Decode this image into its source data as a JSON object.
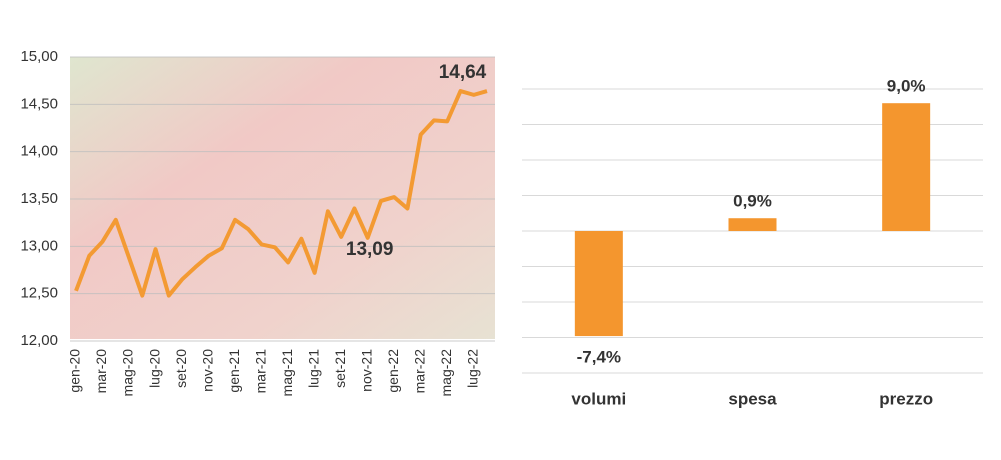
{
  "chart_data": [
    {
      "type": "line",
      "categories": [
        "gen-20",
        null,
        "mar-20",
        null,
        "mag-20",
        null,
        "lug-20",
        null,
        "set-20",
        null,
        "nov-20",
        null,
        "gen-21",
        null,
        "mar-21",
        null,
        "mag-21",
        null,
        "lug-21",
        null,
        "set-21",
        null,
        "nov-21",
        null,
        "gen-22",
        null,
        "mar-22",
        null,
        "mag-22",
        null,
        "lug-22",
        null
      ],
      "values": [
        12.53,
        12.9,
        13.05,
        13.28,
        12.88,
        12.48,
        12.97,
        12.48,
        12.65,
        12.78,
        12.9,
        12.98,
        13.28,
        13.18,
        13.02,
        12.99,
        12.83,
        13.08,
        12.72,
        13.37,
        13.1,
        13.4,
        13.09,
        13.48,
        13.52,
        13.4,
        14.18,
        14.33,
        14.32,
        14.64,
        14.6,
        14.64
      ],
      "value_labels": [
        null,
        null,
        null,
        null,
        null,
        null,
        null,
        null,
        null,
        null,
        null,
        null,
        null,
        null,
        null,
        null,
        null,
        null,
        null,
        null,
        null,
        null,
        "13,09",
        null,
        null,
        null,
        null,
        null,
        null,
        "14,64",
        null,
        null
      ],
      "color": "#f39a33",
      "ylim": [
        12,
        15
      ],
      "yticks": [
        {
          "value": 12,
          "label": "12,00"
        },
        {
          "value": 12.5,
          "label": "12,50"
        },
        {
          "value": 13,
          "label": "13,00"
        },
        {
          "value": 13.5,
          "label": "13,50"
        },
        {
          "value": 14,
          "label": "14,00"
        },
        {
          "value": 14.5,
          "label": "14,50"
        },
        {
          "value": 15,
          "label": "15,00"
        }
      ],
      "grid": true
    },
    {
      "type": "bar",
      "categories": [
        "volumi",
        "spesa",
        "prezzo"
      ],
      "values": [
        -7.4,
        0.9,
        9.0
      ],
      "value_labels": [
        "-7,4%",
        "0,9%",
        "9,0%"
      ],
      "color": "#f4962e",
      "ylim": [
        -10,
        10
      ],
      "yticks": [
        -10,
        -7.5,
        -5,
        -2.5,
        0,
        2.5,
        5,
        7.5,
        10
      ],
      "grid": true
    }
  ]
}
